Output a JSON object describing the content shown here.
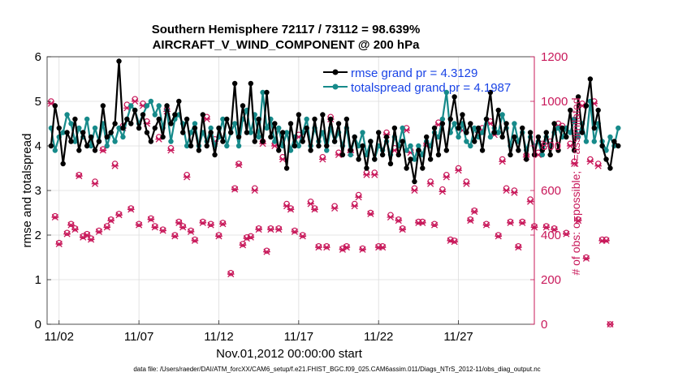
{
  "chart_data": {
    "type": "line",
    "title_line1": "Southern Hemisphere 72117 / 73112 = 98.639%",
    "title_line2": "AIRCRAFT_V_WIND_COMPONENT @ 200 hPa",
    "xlabel": "Nov.01,2012 00:00:00 start",
    "ylabel_left": "rmse and totalspread",
    "ylabel_right": "# of obs: o=possible; ×=assimilated",
    "xlim": [
      0.5,
      31.0
    ],
    "ylim_left": [
      0,
      6
    ],
    "ylim_right": [
      0,
      1200
    ],
    "x_ticks": [
      1.25,
      6.25,
      11.25,
      16.25,
      21.25,
      26.25
    ],
    "x_tick_labels": [
      "11/02",
      "11/07",
      "11/12",
      "11/17",
      "11/22",
      "11/27"
    ],
    "y_ticks_left": [
      0,
      1,
      2,
      3,
      4,
      5,
      6
    ],
    "y_tick_labels_left": [
      "0",
      "1",
      "2",
      "3",
      "4",
      "5",
      "6"
    ],
    "y_ticks_right": [
      0,
      200,
      400,
      600,
      800,
      1000,
      1200
    ],
    "y_tick_labels_right": [
      "0",
      "200",
      "400",
      "600",
      "800",
      "1000",
      "1200"
    ],
    "colors": {
      "rmse": "#000000",
      "spread": "#168a8a",
      "obs": "#c8185a",
      "legend_text": "#1a44e6"
    },
    "series": [
      {
        "name": "rmse grand pr = 4.3129",
        "axis": "left",
        "x_start": 0.75,
        "x_step": 0.25,
        "values": [
          4.0,
          4.9,
          4.4,
          3.6,
          4.3,
          4.1,
          4.6,
          3.9,
          4.3,
          4.0,
          4.2,
          3.9,
          4.1,
          4.9,
          4.2,
          4.3,
          4.5,
          5.9,
          4.4,
          4.6,
          4.5,
          4.8,
          4.4,
          4.7,
          4.3,
          4.1,
          4.4,
          4.6,
          4.2,
          4.9,
          4.5,
          4.7,
          5.0,
          4.3,
          4.6,
          4.0,
          4.4,
          3.9,
          4.7,
          4.0,
          4.3,
          3.8,
          4.4,
          4.1,
          4.6,
          4.3,
          5.4,
          4.2,
          4.9,
          4.3,
          5.4,
          4.1,
          4.6,
          4.1,
          5.2,
          4.2,
          4.5,
          3.9,
          4.3,
          3.5,
          4.5,
          4.0,
          4.7,
          4.1,
          4.4,
          3.9,
          4.6,
          4.0,
          4.7,
          4.0,
          4.6,
          4.1,
          4.5,
          3.8,
          4.6,
          3.9,
          4.2,
          3.7,
          4.0,
          3.5,
          4.1,
          3.7,
          4.3,
          3.8,
          4.2,
          3.6,
          4.4,
          3.8,
          4.1,
          3.5,
          3.7,
          3.2,
          3.9,
          3.5,
          4.2,
          3.7,
          4.4,
          3.8,
          4.5,
          3.9,
          4.6,
          5.1,
          4.4,
          4.7,
          4.3,
          4.5,
          4.1,
          4.4,
          3.9,
          4.6,
          5.2,
          4.3,
          4.8,
          4.2,
          4.5,
          3.8,
          4.2,
          3.9,
          4.4,
          3.7,
          4.3,
          3.8,
          4.2,
          3.9,
          4.3,
          3.8,
          4.5,
          3.9,
          4.4,
          4.2,
          4.8,
          3.9,
          5.1,
          4.3,
          4.9,
          5.5,
          4.4,
          4.8,
          4.0,
          3.7,
          3.5,
          4.1,
          4.0
        ]
      },
      {
        "name": "totalspread grand pr = 4.1987",
        "axis": "left",
        "x_start": 0.75,
        "x_step": 0.25,
        "values": [
          4.4,
          3.9,
          4.2,
          4.3,
          4.7,
          4.5,
          4.1,
          4.4,
          4.2,
          4.6,
          4.0,
          4.4,
          4.1,
          4.5,
          4.0,
          4.3,
          4.1,
          4.4,
          4.2,
          4.6,
          4.9,
          4.8,
          4.5,
          4.7,
          4.9,
          5.0,
          4.7,
          4.9,
          4.4,
          4.8,
          4.1,
          4.6,
          4.7,
          4.5,
          4.0,
          4.3,
          4.5,
          4.0,
          4.3,
          4.1,
          4.4,
          4.0,
          4.2,
          4.6,
          4.0,
          4.3,
          4.5,
          4.0,
          4.6,
          4.8,
          4.3,
          4.7,
          4.2,
          5.2,
          4.4,
          4.6,
          4.1,
          4.4,
          4.0,
          4.3,
          3.9,
          4.2,
          4.0,
          4.3,
          4.6,
          4.0,
          4.4,
          4.1,
          4.3,
          3.9,
          4.4,
          4.1,
          4.3,
          4.0,
          4.4,
          3.8,
          4.2,
          4.0,
          4.3,
          3.8,
          4.1,
          3.7,
          4.0,
          3.9,
          4.1,
          3.8,
          4.2,
          4.0,
          4.4,
          3.9,
          4.0,
          3.7,
          4.0,
          3.8,
          4.1,
          4.0,
          4.3,
          4.2,
          4.6,
          5.2,
          4.3,
          4.5,
          4.2,
          4.5,
          4.1,
          4.0,
          4.4,
          4.2,
          4.3,
          4.6,
          4.2,
          4.4,
          4.3,
          4.7,
          4.4,
          4.0,
          4.5,
          4.1,
          4.3,
          3.9,
          4.2,
          4.0,
          4.1,
          3.8,
          4.2,
          4.0,
          4.3,
          4.4,
          4.2,
          4.4,
          4.3,
          4.6,
          4.2,
          4.5,
          4.1,
          5.0,
          4.1,
          4.5,
          4.1,
          3.9,
          4.2,
          4.0,
          4.4
        ]
      },
      {
        "name": "obs possible",
        "axis": "right",
        "marker": "o",
        "x_start": 0.75,
        "x_step": 0.25,
        "values": [
          1000,
          485,
          365,
          null,
          410,
          450,
          430,
          670,
          395,
          405,
          385,
          640,
          420,
          785,
          440,
          470,
          720,
          495,
          890,
          985,
          520,
          1010,
          450,
          990,
          910,
          475,
          440,
          840,
          425,
          965,
          790,
          400,
          460,
          440,
          670,
          420,
          380,
          null,
          460,
          930,
          450,
          830,
          400,
          455,
          null,
          230,
          610,
          720,
          360,
          390,
          395,
          610,
          430,
          820,
          330,
          430,
          810,
          430,
          750,
          540,
          520,
          420,
          850,
          400,
          null,
          550,
          520,
          350,
          750,
          350,
          930,
          530,
          770,
          340,
          350,
          780,
          540,
          580,
          340,
          680,
          500,
          680,
          350,
          350,
          860,
          490,
          790,
          470,
          430,
          880,
          780,
          610,
          460,
          460,
          810,
          640,
          450,
          905,
          605,
          670,
          380,
          375,
          700,
          880,
          640,
          470,
          510,
          870,
          880,
          450,
          910,
          860,
          400,
          740,
          610,
          460,
          600,
          350,
          460,
          760,
          560,
          440,
          770,
          810,
          440,
          820,
          430,
          900,
          890,
          410,
          810,
          730,
          470,
          990,
          300,
          740,
          1000,
          720,
          380,
          380,
          0
        ]
      },
      {
        "name": "obs assimilated",
        "axis": "right",
        "marker": "x",
        "x_start": 0.75,
        "x_step": 0.25,
        "values": [
          990,
          480,
          360,
          null,
          405,
          445,
          425,
          665,
          390,
          400,
          380,
          630,
          415,
          780,
          435,
          465,
          710,
          490,
          880,
          970,
          515,
          1000,
          445,
          980,
          900,
          470,
          435,
          830,
          420,
          955,
          780,
          395,
          455,
          435,
          660,
          415,
          375,
          null,
          455,
          920,
          445,
          820,
          395,
          450,
          null,
          225,
          605,
          715,
          355,
          385,
          390,
          600,
          425,
          810,
          325,
          425,
          800,
          425,
          740,
          530,
          515,
          415,
          840,
          395,
          null,
          540,
          515,
          345,
          740,
          345,
          920,
          520,
          760,
          335,
          345,
          770,
          530,
          570,
          335,
          670,
          495,
          670,
          345,
          345,
          850,
          480,
          780,
          465,
          425,
          870,
          770,
          600,
          455,
          455,
          800,
          630,
          445,
          895,
          595,
          660,
          375,
          370,
          690,
          870,
          630,
          465,
          505,
          860,
          870,
          445,
          900,
          850,
          395,
          730,
          600,
          455,
          590,
          345,
          455,
          750,
          550,
          435,
          760,
          800,
          435,
          810,
          425,
          890,
          880,
          405,
          800,
          720,
          465,
          980,
          295,
          730,
          990,
          710,
          375,
          375,
          0
        ]
      }
    ],
    "legend_position": "top-right"
  },
  "footer": {
    "data_file": "data file: /Users/raeder/DAI/ATM_forcXX/CAM6_setup/f.e21.FHIST_BGC.f09_025.CAM6assim.011/Diags_NTrS_2012-11/obs_diag_output.nc"
  }
}
